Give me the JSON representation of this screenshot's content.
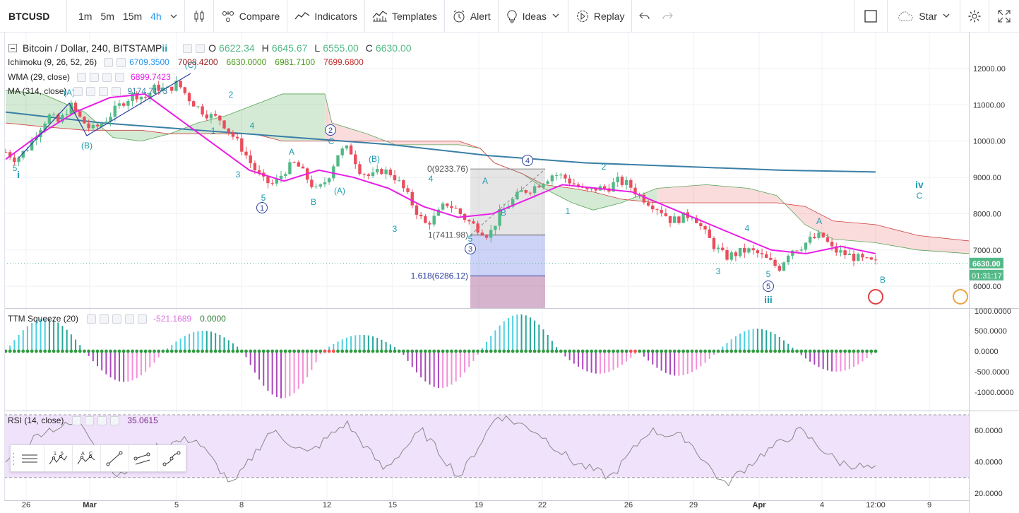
{
  "toolbar": {
    "symbol": "BTCUSD",
    "intervals": [
      "1m",
      "5m",
      "15m",
      "4h"
    ],
    "active_interval": "4h",
    "compare_label": "Compare",
    "indicators_label": "Indicators",
    "templates_label": "Templates",
    "alert_label": "Alert",
    "ideas_label": "Ideas",
    "replay_label": "Replay",
    "star_label": "Star"
  },
  "legend": {
    "title": "Bitcoin / Dollar, 240, BITSTAMP",
    "o_label": "O",
    "o_value": "6622.34",
    "h_label": "H",
    "h_value": "6645.67",
    "l_label": "L",
    "l_value": "6555.00",
    "c_label": "C",
    "c_value": "6630.00",
    "ichimoku_name": "Ichimoku (9, 26, 52, 26)",
    "ichimoku_values": [
      "6709.3500",
      "7008.4200",
      "6630.0000",
      "6981.7100",
      "7699.6800"
    ],
    "wma_name": "WMA (29, close)",
    "wma_value": "6899.7423",
    "ma_name": "MA (314, close)",
    "ma_value": "9174.7173",
    "ttm_name": "TTM Squeeze (20)",
    "ttm_values": [
      "-521.1689",
      "0.0000"
    ],
    "rsi_name": "RSI (14, close)",
    "rsi_value": "35.0615"
  },
  "colors": {
    "up": "#53b987",
    "down": "#eb4d5c",
    "wma": "#e91ee6",
    "ma": "#3a7fa6",
    "elliott": "#1e9bb0",
    "blue": "#2c3f9f",
    "rsi_line": "#888888",
    "rsi_bg": "#f0e2fb"
  },
  "price_axis": {
    "ticks": [
      "12000.00",
      "11000.00",
      "10000.00",
      "9000.00",
      "8000.00",
      "7000.00",
      "6000.00"
    ],
    "last_price": "6630.00",
    "countdown": "01:31:17"
  },
  "ttm_axis": {
    "ticks": [
      "1000.0000",
      "500.0000",
      "0.0000",
      "-500.0000",
      "-1000.0000"
    ]
  },
  "rsi_axis": {
    "ticks": [
      "60.0000",
      "40.0000",
      "20.0000"
    ]
  },
  "time_axis": {
    "ticks": [
      "26",
      "Mar",
      "5",
      "8",
      "12",
      "15",
      "19",
      "22",
      "26",
      "29",
      "Apr",
      "4",
      "12:00",
      "9"
    ]
  },
  "fib": {
    "level0": "0(9233.76)",
    "level1": "1(7411.98)",
    "level1618": "1.618(6286.12)"
  },
  "waves": {
    "i": "i",
    "ii": "ii",
    "iii": "iii",
    "iv": "iv",
    "circled": [
      "1",
      "2",
      "3",
      "4",
      "5"
    ],
    "minor": [
      "1",
      "2",
      "3",
      "4",
      "5",
      "A",
      "B",
      "C",
      "(A)",
      "(B)",
      "(C)"
    ]
  },
  "drawing_tools": [
    "horizontal-lines-icon",
    "elliott-impulse-icon",
    "elliott-correction-icon",
    "trendline-icon",
    "channel-icon",
    "path-icon"
  ],
  "chart_data": {
    "type": "candlestick",
    "symbol": "BTCUSD",
    "ohlc_last": {
      "open": 6622.34,
      "high": 6645.67,
      "low": 6555.0,
      "close": 6630.0
    },
    "close_path": [
      9700,
      9500,
      9800,
      10300,
      10700,
      10500,
      11000,
      10600,
      10300,
      10500,
      10800,
      11100,
      11300,
      11200,
      11500,
      11400,
      11600,
      11200,
      10900,
      10700,
      10600,
      10200,
      9800,
      9300,
      8900,
      8800,
      9200,
      9400,
      9000,
      8600,
      9000,
      9700,
      9800,
      9200,
      9000,
      9200,
      9100,
      8700,
      8200,
      7700,
      7900,
      8300,
      8100,
      7800,
      7600,
      7400,
      8000,
      8300,
      8600,
      8700,
      8900,
      9100,
      9000,
      8800,
      8600,
      8700,
      8700,
      8900,
      8800,
      8500,
      8300,
      8100,
      7800,
      7900,
      8000,
      7500,
      7100,
      6800,
      6900,
      7000,
      6900,
      6700,
      6500,
      7000,
      7100,
      7300,
      7400,
      7000,
      6900,
      6800,
      6700,
      6630
    ],
    "wma_values": [
      9500,
      10200,
      10800,
      11200,
      11300,
      10600,
      9900,
      9200,
      8900,
      9200,
      9000,
      8700,
      8200,
      7900,
      8000,
      8400,
      8800,
      8700,
      8600,
      8200,
      7800,
      7400,
      7000,
      6900,
      7100,
      6900
    ],
    "ma_values": [
      10800,
      10500,
      10300,
      10100,
      9900,
      9600,
      9400,
      9300,
      9200,
      9150
    ],
    "ttm_histogram_peaks": [
      800,
      -750,
      500,
      -1150,
      400,
      -900,
      900,
      -550,
      -600,
      550,
      -500
    ],
    "rsi_values": [
      40,
      60,
      65,
      30,
      50,
      55,
      25,
      60,
      45,
      65,
      35,
      60,
      30,
      70,
      60,
      40,
      30,
      60,
      55,
      25,
      45,
      60,
      40,
      35
    ]
  }
}
